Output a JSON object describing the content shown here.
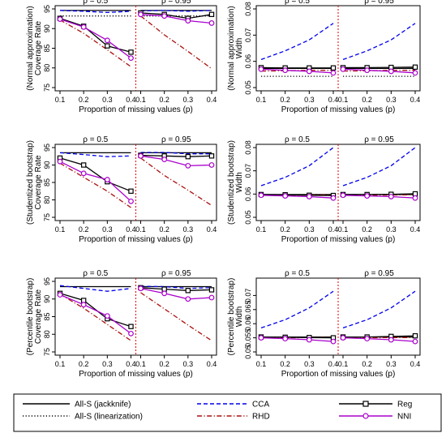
{
  "figure": {
    "x_axis_label": "Proportion of missing values (p)",
    "panel_labels": [
      "ρ = 0.5",
      "ρ = 0.95"
    ],
    "rows": [
      {
        "coverage_ylabel": [
          "(Normal approximation)",
          "Coverage Rate"
        ],
        "width_ylabel": [
          "(Normal approximation)",
          "Width"
        ]
      },
      {
        "coverage_ylabel": [
          "(Studentized bootstrap)",
          "Coverage Rate"
        ],
        "width_ylabel": [
          "(Studentized bootstrap)",
          "Width"
        ]
      },
      {
        "coverage_ylabel": [
          "(Percentile bootstrap)",
          "Coverage Rate"
        ],
        "width_ylabel": [
          "(Percentile bootstrap)",
          "Width"
        ]
      }
    ],
    "legend": [
      {
        "label": "All-S (jackknife)",
        "style": "solid",
        "color": "#000000"
      },
      {
        "label": "All-S (linearization)",
        "style": "dotted",
        "color": "#000000"
      },
      {
        "label": "CCA",
        "style": "dashed",
        "color": "#0000ee"
      },
      {
        "label": "RHD",
        "style": "dashdot",
        "color": "#aa1111"
      },
      {
        "label": "Reg",
        "style": "solid-square",
        "color": "#000000"
      },
      {
        "label": "NNI",
        "style": "solid-circle",
        "color": "#aa00cc"
      }
    ]
  },
  "chart_data": [
    {
      "type": "line",
      "row": "Normal approximation",
      "measure": "Coverage Rate",
      "x": [
        0.1,
        0.2,
        0.3,
        0.4
      ],
      "ylim": [
        75,
        95
      ],
      "yticks": [
        75,
        80,
        85,
        90,
        95
      ],
      "panels": [
        {
          "rho": "ρ = 0.5",
          "series": [
            {
              "name": "All-S (jackknife)",
              "values": [
                94.6,
                94.6,
                94.6,
                94.6
              ]
            },
            {
              "name": "All-S (linearization)",
              "values": [
                93.2,
                93.2,
                93.2,
                93.2
              ]
            },
            {
              "name": "CCA",
              "values": [
                94.6,
                94.4,
                94.1,
                94.4
              ]
            },
            {
              "name": "RHD",
              "values": [
                92.2,
                88.8,
                84.6,
                80.3
              ]
            },
            {
              "name": "Reg",
              "values": [
                92.6,
                90.6,
                85.6,
                84.0
              ]
            },
            {
              "name": "NNI",
              "values": [
                92.4,
                90.4,
                87.0,
                82.5
              ]
            }
          ]
        },
        {
          "rho": "ρ = 0.95",
          "series": [
            {
              "name": "All-S (jackknife)",
              "values": [
                94.6,
                94.6,
                94.6,
                94.6
              ]
            },
            {
              "name": "All-S (linearization)",
              "values": [
                93.2,
                93.2,
                93.2,
                93.2
              ]
            },
            {
              "name": "CCA",
              "values": [
                94.5,
                94.6,
                94.4,
                94.6
              ]
            },
            {
              "name": "RHD",
              "values": [
                93.2,
                88.4,
                84.2,
                79.8
              ]
            },
            {
              "name": "Reg",
              "values": [
                94.0,
                93.6,
                92.6,
                93.6
              ]
            },
            {
              "name": "NNI",
              "values": [
                93.6,
                93.2,
                92.0,
                91.4
              ]
            }
          ]
        }
      ]
    },
    {
      "type": "line",
      "row": "Normal approximation",
      "measure": "Width",
      "x": [
        0.1,
        0.2,
        0.3,
        0.4
      ],
      "ylim": [
        0.05,
        0.08
      ],
      "yticks": [
        0.05,
        0.06,
        0.07,
        0.08
      ],
      "panels": [
        {
          "rho": "ρ = 0.5",
          "series": [
            {
              "name": "All-S (jackknife)",
              "values": [
                0.0573,
                0.0573,
                0.0573,
                0.0573
              ]
            },
            {
              "name": "All-S (linearization)",
              "values": [
                0.0543,
                0.0543,
                0.0543,
                0.0543
              ]
            },
            {
              "name": "CCA",
              "values": [
                0.0607,
                0.064,
                0.0682,
                0.0745
              ]
            },
            {
              "name": "RHD",
              "values": [
                0.0563,
                0.0564,
                0.0566,
                0.0566
              ]
            },
            {
              "name": "Reg",
              "values": [
                0.0576,
                0.0575,
                0.0575,
                0.0575
              ]
            },
            {
              "name": "NNI",
              "values": [
                0.057,
                0.0566,
                0.0562,
                0.0556
              ]
            }
          ]
        },
        {
          "rho": "ρ = 0.95",
          "series": [
            {
              "name": "All-S (jackknife)",
              "values": [
                0.0573,
                0.0573,
                0.0573,
                0.0573
              ]
            },
            {
              "name": "All-S (linearization)",
              "values": [
                0.0543,
                0.0543,
                0.0543,
                0.0543
              ]
            },
            {
              "name": "CCA",
              "values": [
                0.0607,
                0.064,
                0.0682,
                0.0745
              ]
            },
            {
              "name": "RHD",
              "values": [
                0.0563,
                0.0564,
                0.0566,
                0.0566
              ]
            },
            {
              "name": "Reg",
              "values": [
                0.0576,
                0.0576,
                0.0577,
                0.0578
              ]
            },
            {
              "name": "NNI",
              "values": [
                0.057,
                0.0566,
                0.0562,
                0.0556
              ]
            }
          ]
        }
      ]
    },
    {
      "type": "line",
      "row": "Studentized bootstrap",
      "measure": "Coverage Rate",
      "x": [
        0.1,
        0.2,
        0.3,
        0.4
      ],
      "ylim": [
        75,
        95
      ],
      "yticks": [
        75,
        80,
        85,
        90,
        95
      ],
      "panels": [
        {
          "rho": "ρ = 0.5",
          "series": [
            {
              "name": "All-S (jackknife)",
              "values": [
                93.5,
                93.5,
                93.5,
                93.5
              ]
            },
            {
              "name": "CCA",
              "values": [
                93.5,
                93.0,
                92.4,
                92.6
              ]
            },
            {
              "name": "RHD",
              "values": [
                90.5,
                86.5,
                82.5,
                77.8
              ]
            },
            {
              "name": "Reg",
              "values": [
                92.0,
                90.0,
                85.2,
                82.5
              ]
            },
            {
              "name": "NNI",
              "values": [
                91.0,
                87.6,
                85.8,
                79.6
              ]
            }
          ]
        },
        {
          "rho": "ρ = 0.95",
          "series": [
            {
              "name": "All-S (jackknife)",
              "values": [
                93.5,
                93.5,
                93.5,
                93.5
              ]
            },
            {
              "name": "CCA",
              "values": [
                93.6,
                93.6,
                93.2,
                93.2
              ]
            },
            {
              "name": "RHD",
              "values": [
                92.0,
                87.0,
                82.8,
                78.4
              ]
            },
            {
              "name": "Reg",
              "values": [
                92.8,
                92.6,
                92.4,
                92.6
              ]
            },
            {
              "name": "NNI",
              "values": [
                92.6,
                91.6,
                89.8,
                90.0
              ]
            }
          ]
        }
      ]
    },
    {
      "type": "line",
      "row": "Studentized bootstrap",
      "measure": "Width",
      "x": [
        0.1,
        0.2,
        0.3,
        0.4
      ],
      "ylim": [
        0.05,
        0.08
      ],
      "yticks": [
        0.05,
        0.06,
        0.07,
        0.08
      ],
      "panels": [
        {
          "rho": "ρ = 0.5",
          "series": [
            {
              "name": "All-S (jackknife)",
              "values": [
                0.0598,
                0.0598,
                0.0598,
                0.0598
              ]
            },
            {
              "name": "CCA",
              "values": [
                0.0636,
                0.0672,
                0.0722,
                0.08
              ]
            },
            {
              "name": "RHD",
              "values": [
                0.0595,
                0.0595,
                0.0596,
                0.0597
              ]
            },
            {
              "name": "Reg",
              "values": [
                0.0598,
                0.0597,
                0.0595,
                0.0594
              ]
            },
            {
              "name": "NNI",
              "values": [
                0.0595,
                0.0592,
                0.0589,
                0.0583
              ]
            }
          ]
        },
        {
          "rho": "ρ = 0.95",
          "series": [
            {
              "name": "All-S (jackknife)",
              "values": [
                0.0598,
                0.0598,
                0.0598,
                0.0598
              ]
            },
            {
              "name": "CCA",
              "values": [
                0.0636,
                0.0672,
                0.0722,
                0.08
              ]
            },
            {
              "name": "RHD",
              "values": [
                0.0595,
                0.0595,
                0.0596,
                0.0597
              ]
            },
            {
              "name": "Reg",
              "values": [
                0.0598,
                0.0598,
                0.0599,
                0.0601
              ]
            },
            {
              "name": "NNI",
              "values": [
                0.0595,
                0.0592,
                0.0589,
                0.0583
              ]
            }
          ]
        }
      ]
    },
    {
      "type": "line",
      "row": "Percentile bootstrap",
      "measure": "Coverage Rate",
      "x": [
        0.1,
        0.2,
        0.3,
        0.4
      ],
      "ylim": [
        75,
        95
      ],
      "yticks": [
        75,
        80,
        85,
        90,
        95
      ],
      "panels": [
        {
          "rho": "ρ = 0.5",
          "series": [
            {
              "name": "All-S (jackknife)",
              "values": [
                93.5,
                93.5,
                93.5,
                93.5
              ]
            },
            {
              "name": "CCA",
              "values": [
                93.8,
                93.0,
                92.2,
                93.0
              ]
            },
            {
              "name": "RHD",
              "values": [
                91.4,
                87.4,
                82.8,
                78.2
              ]
            },
            {
              "name": "Reg",
              "values": [
                91.6,
                89.6,
                84.4,
                82.2
              ]
            },
            {
              "name": "NNI",
              "values": [
                91.2,
                88.4,
                85.2,
                80.2
              ]
            }
          ]
        },
        {
          "rho": "ρ = 0.95",
          "series": [
            {
              "name": "All-S (jackknife)",
              "values": [
                93.5,
                93.5,
                93.5,
                93.5
              ]
            },
            {
              "name": "CCA",
              "values": [
                93.6,
                93.5,
                93.0,
                93.2
              ]
            },
            {
              "name": "RHD",
              "values": [
                91.8,
                87.2,
                82.6,
                78.2
              ]
            },
            {
              "name": "Reg",
              "values": [
                93.2,
                92.8,
                92.4,
                92.6
              ]
            },
            {
              "name": "NNI",
              "values": [
                93.0,
                91.6,
                90.0,
                90.4
              ]
            }
          ]
        }
      ]
    },
    {
      "type": "line",
      "row": "Percentile bootstrap",
      "measure": "Width",
      "x": [
        0.1,
        0.2,
        0.3,
        0.4
      ],
      "ylim": [
        0.05,
        0.075
      ],
      "yticks": [
        0.05,
        0.055,
        0.06,
        0.065,
        0.07
      ],
      "panels": [
        {
          "rho": "ρ = 0.5",
          "series": [
            {
              "name": "All-S (jackknife)",
              "values": [
                0.0553,
                0.0553,
                0.0553,
                0.0553
              ]
            },
            {
              "name": "CCA",
              "values": [
                0.0585,
                0.0614,
                0.0656,
                0.0715
              ]
            },
            {
              "name": "RHD",
              "values": [
                0.055,
                0.055,
                0.0551,
                0.0551
              ]
            },
            {
              "name": "Reg",
              "values": [
                0.0553,
                0.0552,
                0.0551,
                0.055
              ]
            },
            {
              "name": "NNI",
              "values": [
                0.055,
                0.0547,
                0.0543,
                0.0537
              ]
            }
          ]
        },
        {
          "rho": "ρ = 0.95",
          "series": [
            {
              "name": "All-S (jackknife)",
              "values": [
                0.0553,
                0.0553,
                0.0553,
                0.0553
              ]
            },
            {
              "name": "CCA",
              "values": [
                0.0585,
                0.0614,
                0.0656,
                0.0715
              ]
            },
            {
              "name": "RHD",
              "values": [
                0.055,
                0.055,
                0.0551,
                0.0551
              ]
            },
            {
              "name": "Reg",
              "values": [
                0.0553,
                0.0553,
                0.0555,
                0.0557
              ]
            },
            {
              "name": "NNI",
              "values": [
                0.055,
                0.0547,
                0.0543,
                0.0537
              ]
            }
          ]
        }
      ]
    }
  ]
}
